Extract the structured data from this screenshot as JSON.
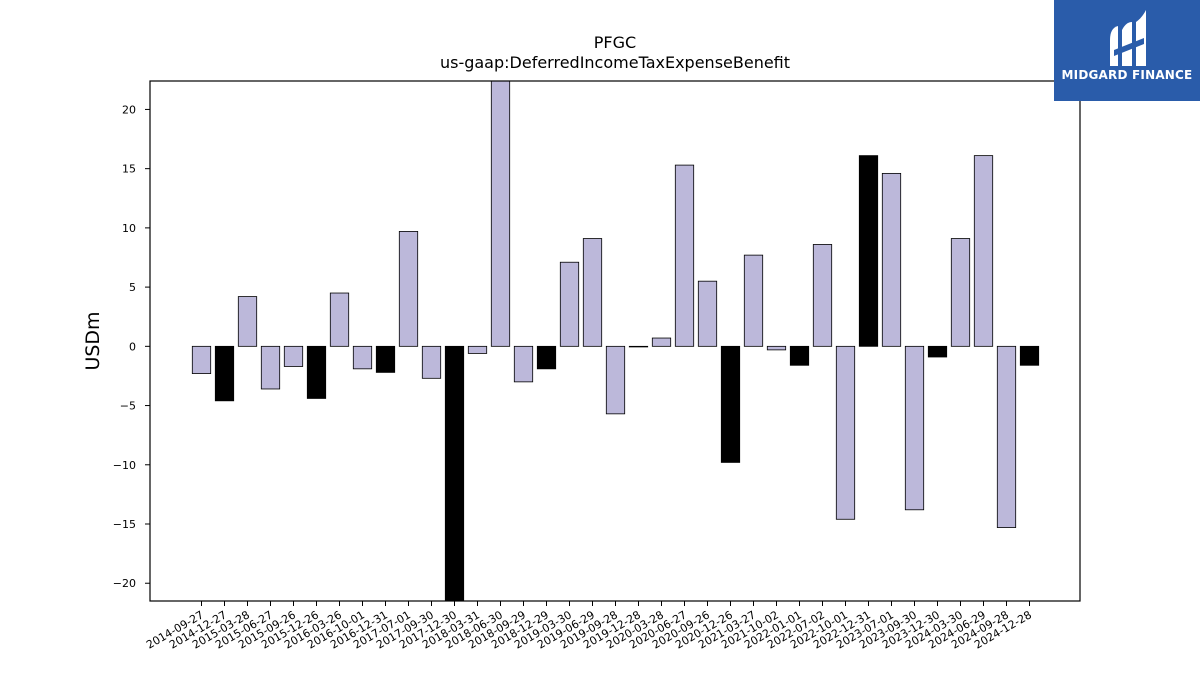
{
  "chart_data": {
    "type": "bar",
    "title": "PFGC",
    "subtitle": "us-gaap:DeferredIncomeTaxExpenseBenefit",
    "xlabel": "",
    "ylabel": "USDm",
    "ylim": [
      -21.5,
      22.4
    ],
    "yticks": [
      -20,
      -15,
      -10,
      -5,
      0,
      5,
      10,
      15,
      20
    ],
    "ytick_labels": [
      "−20",
      "−15",
      "−10",
      "−5",
      "0",
      "5",
      "10",
      "15",
      "20"
    ],
    "grid": false,
    "legend": "none",
    "categories": [
      "2014-09-27",
      "2014-12-27",
      "2015-03-28",
      "2015-06-27",
      "2015-09-26",
      "2015-12-26",
      "2016-03-26",
      "2016-10-01",
      "2016-12-31",
      "2017-07-01",
      "2017-09-30",
      "2017-12-30",
      "2018-03-31",
      "2018-06-30",
      "2018-09-29",
      "2018-12-29",
      "2019-03-30",
      "2019-06-29",
      "2019-09-28",
      "2019-12-28",
      "2020-03-28",
      "2020-06-27",
      "2020-09-26",
      "2020-12-26",
      "2021-03-27",
      "2021-10-02",
      "2022-01-01",
      "2022-07-02",
      "2022-10-01",
      "2022-12-31",
      "2023-07-01",
      "2023-09-30",
      "2023-12-30",
      "2024-03-30",
      "2024-06-29",
      "2024-09-28",
      "2024-12-28"
    ],
    "values": [
      -2.3,
      -4.6,
      4.2,
      -3.6,
      -1.7,
      -4.4,
      4.5,
      -1.9,
      -2.2,
      9.7,
      -2.7,
      -21.5,
      -0.6,
      22.4,
      -3.0,
      -1.9,
      7.1,
      9.1,
      -5.7,
      0.0,
      0.7,
      15.3,
      5.5,
      -9.8,
      7.7,
      -0.3,
      -1.6,
      8.6,
      -14.6,
      16.1,
      14.6,
      -13.8,
      -0.9,
      9.1,
      16.1,
      -15.3,
      -1.6
    ],
    "bar_colors": [
      "#bcb8da",
      "#000000",
      "#bcb8da",
      "#bcb8da",
      "#bcb8da",
      "#000000",
      "#bcb8da",
      "#bcb8da",
      "#000000",
      "#bcb8da",
      "#bcb8da",
      "#000000",
      "#bcb8da",
      "#bcb8da",
      "#bcb8da",
      "#000000",
      "#bcb8da",
      "#bcb8da",
      "#bcb8da",
      "#000000",
      "#bcb8da",
      "#bcb8da",
      "#bcb8da",
      "#000000",
      "#bcb8da",
      "#bcb8da",
      "#000000",
      "#bcb8da",
      "#bcb8da",
      "#000000",
      "#bcb8da",
      "#bcb8da",
      "#000000",
      "#bcb8da",
      "#bcb8da",
      "#bcb8da",
      "#000000"
    ]
  },
  "logo": {
    "text": "MIDGARD FINANCE",
    "color": "#2a5caa"
  }
}
